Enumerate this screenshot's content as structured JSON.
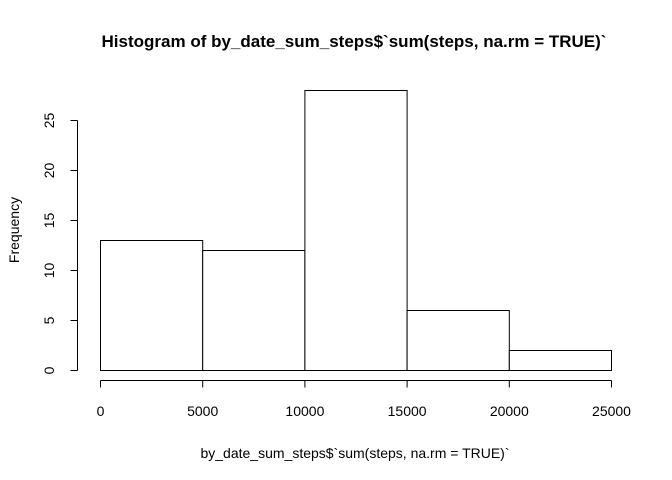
{
  "chart_data": {
    "type": "bar",
    "title": "Histogram of by_date_sum_steps$`sum(steps, na.rm = TRUE)`",
    "xlabel": "by_date_sum_steps$`sum(steps, na.rm = TRUE)`",
    "ylabel": "Frequency",
    "bins": [
      {
        "from": 0,
        "to": 5000,
        "count": 13
      },
      {
        "from": 5000,
        "to": 10000,
        "count": 12
      },
      {
        "from": 10000,
        "to": 15000,
        "count": 28
      },
      {
        "from": 15000,
        "to": 20000,
        "count": 6
      },
      {
        "from": 20000,
        "to": 25000,
        "count": 2
      }
    ],
    "xlim": [
      0,
      25000
    ],
    "ylim": [
      0,
      28
    ],
    "xticks": [
      0,
      5000,
      10000,
      15000,
      20000,
      25000
    ],
    "yticks": [
      0,
      5,
      10,
      15,
      20,
      25
    ],
    "grid": false,
    "legend": "none",
    "bar_fill": "#ffffff",
    "bar_stroke": "#000000"
  }
}
